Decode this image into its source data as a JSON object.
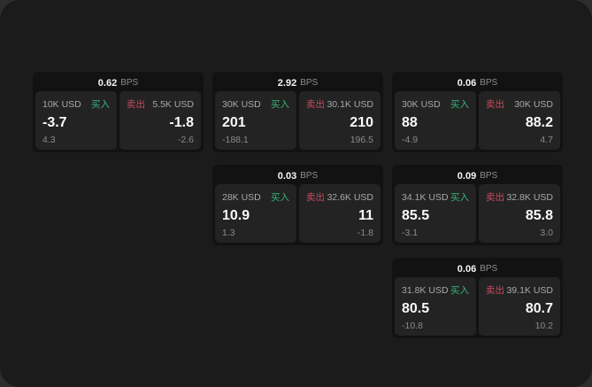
{
  "unit": "BPS",
  "side_labels": {
    "buy": "买入",
    "sell": "卖出"
  },
  "colors": {
    "outer_background": "#2e2e2e",
    "panel_background": "#1b1b1b",
    "card_background": "#121212",
    "tile_background": "#232323",
    "buy_green": "#35b57c",
    "sell_red": "#c94a5e",
    "value_white": "#fafafa",
    "label_gray": "#a8a8a8",
    "dim_gray": "#8a8a8a"
  },
  "cards": [
    {
      "row": 1,
      "col": 1,
      "bps": "0.62",
      "buy": {
        "size": "10K USD",
        "price": "-3.7",
        "delta": "4.3"
      },
      "sell": {
        "size": "5.5K USD",
        "price": "-1.8",
        "delta": "-2.6"
      }
    },
    {
      "row": 1,
      "col": 2,
      "bps": "2.92",
      "buy": {
        "size": "30K USD",
        "price": "201",
        "delta": "-188.1"
      },
      "sell": {
        "size": "30.1K USD",
        "price": "210",
        "delta": "196.5"
      }
    },
    {
      "row": 1,
      "col": 3,
      "bps": "0.06",
      "buy": {
        "size": "30K USD",
        "price": "88",
        "delta": "-4.9"
      },
      "sell": {
        "size": "30K USD",
        "price": "88.2",
        "delta": "4.7"
      }
    },
    {
      "row": 2,
      "col": 2,
      "bps": "0.03",
      "buy": {
        "size": "28K USD",
        "price": "10.9",
        "delta": "1.3"
      },
      "sell": {
        "size": "32.6K USD",
        "price": "11",
        "delta": "-1.8"
      }
    },
    {
      "row": 2,
      "col": 3,
      "bps": "0.09",
      "buy": {
        "size": "34.1K USD",
        "price": "85.5",
        "delta": "-3.1"
      },
      "sell": {
        "size": "32.8K USD",
        "price": "85.8",
        "delta": "3.0"
      }
    },
    {
      "row": 3,
      "col": 3,
      "bps": "0.06",
      "buy": {
        "size": "31.8K USD",
        "price": "80.5",
        "delta": "-10.8"
      },
      "sell": {
        "size": "39.1K USD",
        "price": "80.7",
        "delta": "10.2"
      }
    }
  ]
}
